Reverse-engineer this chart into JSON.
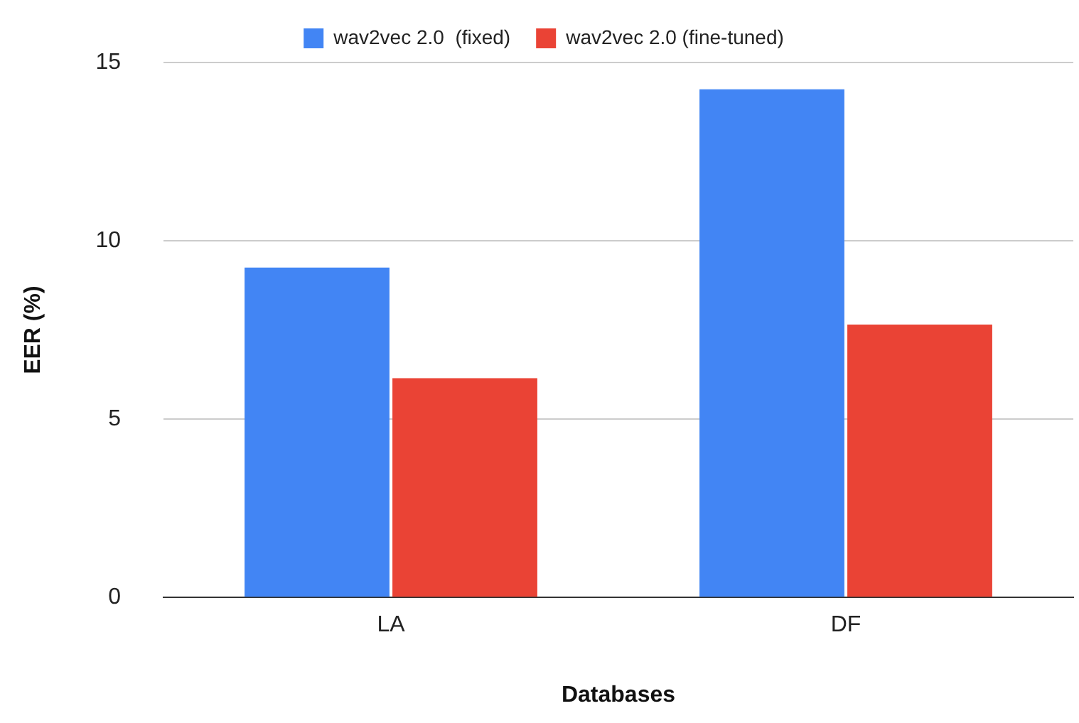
{
  "chart_data": {
    "type": "bar",
    "xlabel": "Databases",
    "ylabel": "EER (%)",
    "categories": [
      "LA",
      "DF"
    ],
    "series": [
      {
        "name": "wav2vec 2.0  (fixed)",
        "color": "#4285f4",
        "values": [
          9.25,
          14.25
        ]
      },
      {
        "name": "wav2vec 2.0 (fine-tuned)",
        "color": "#ea4335",
        "values": [
          6.15,
          7.65
        ]
      }
    ],
    "ylim": [
      0,
      15
    ],
    "yticks": [
      0,
      5,
      10,
      15
    ],
    "grid": "y",
    "legend": "top"
  }
}
